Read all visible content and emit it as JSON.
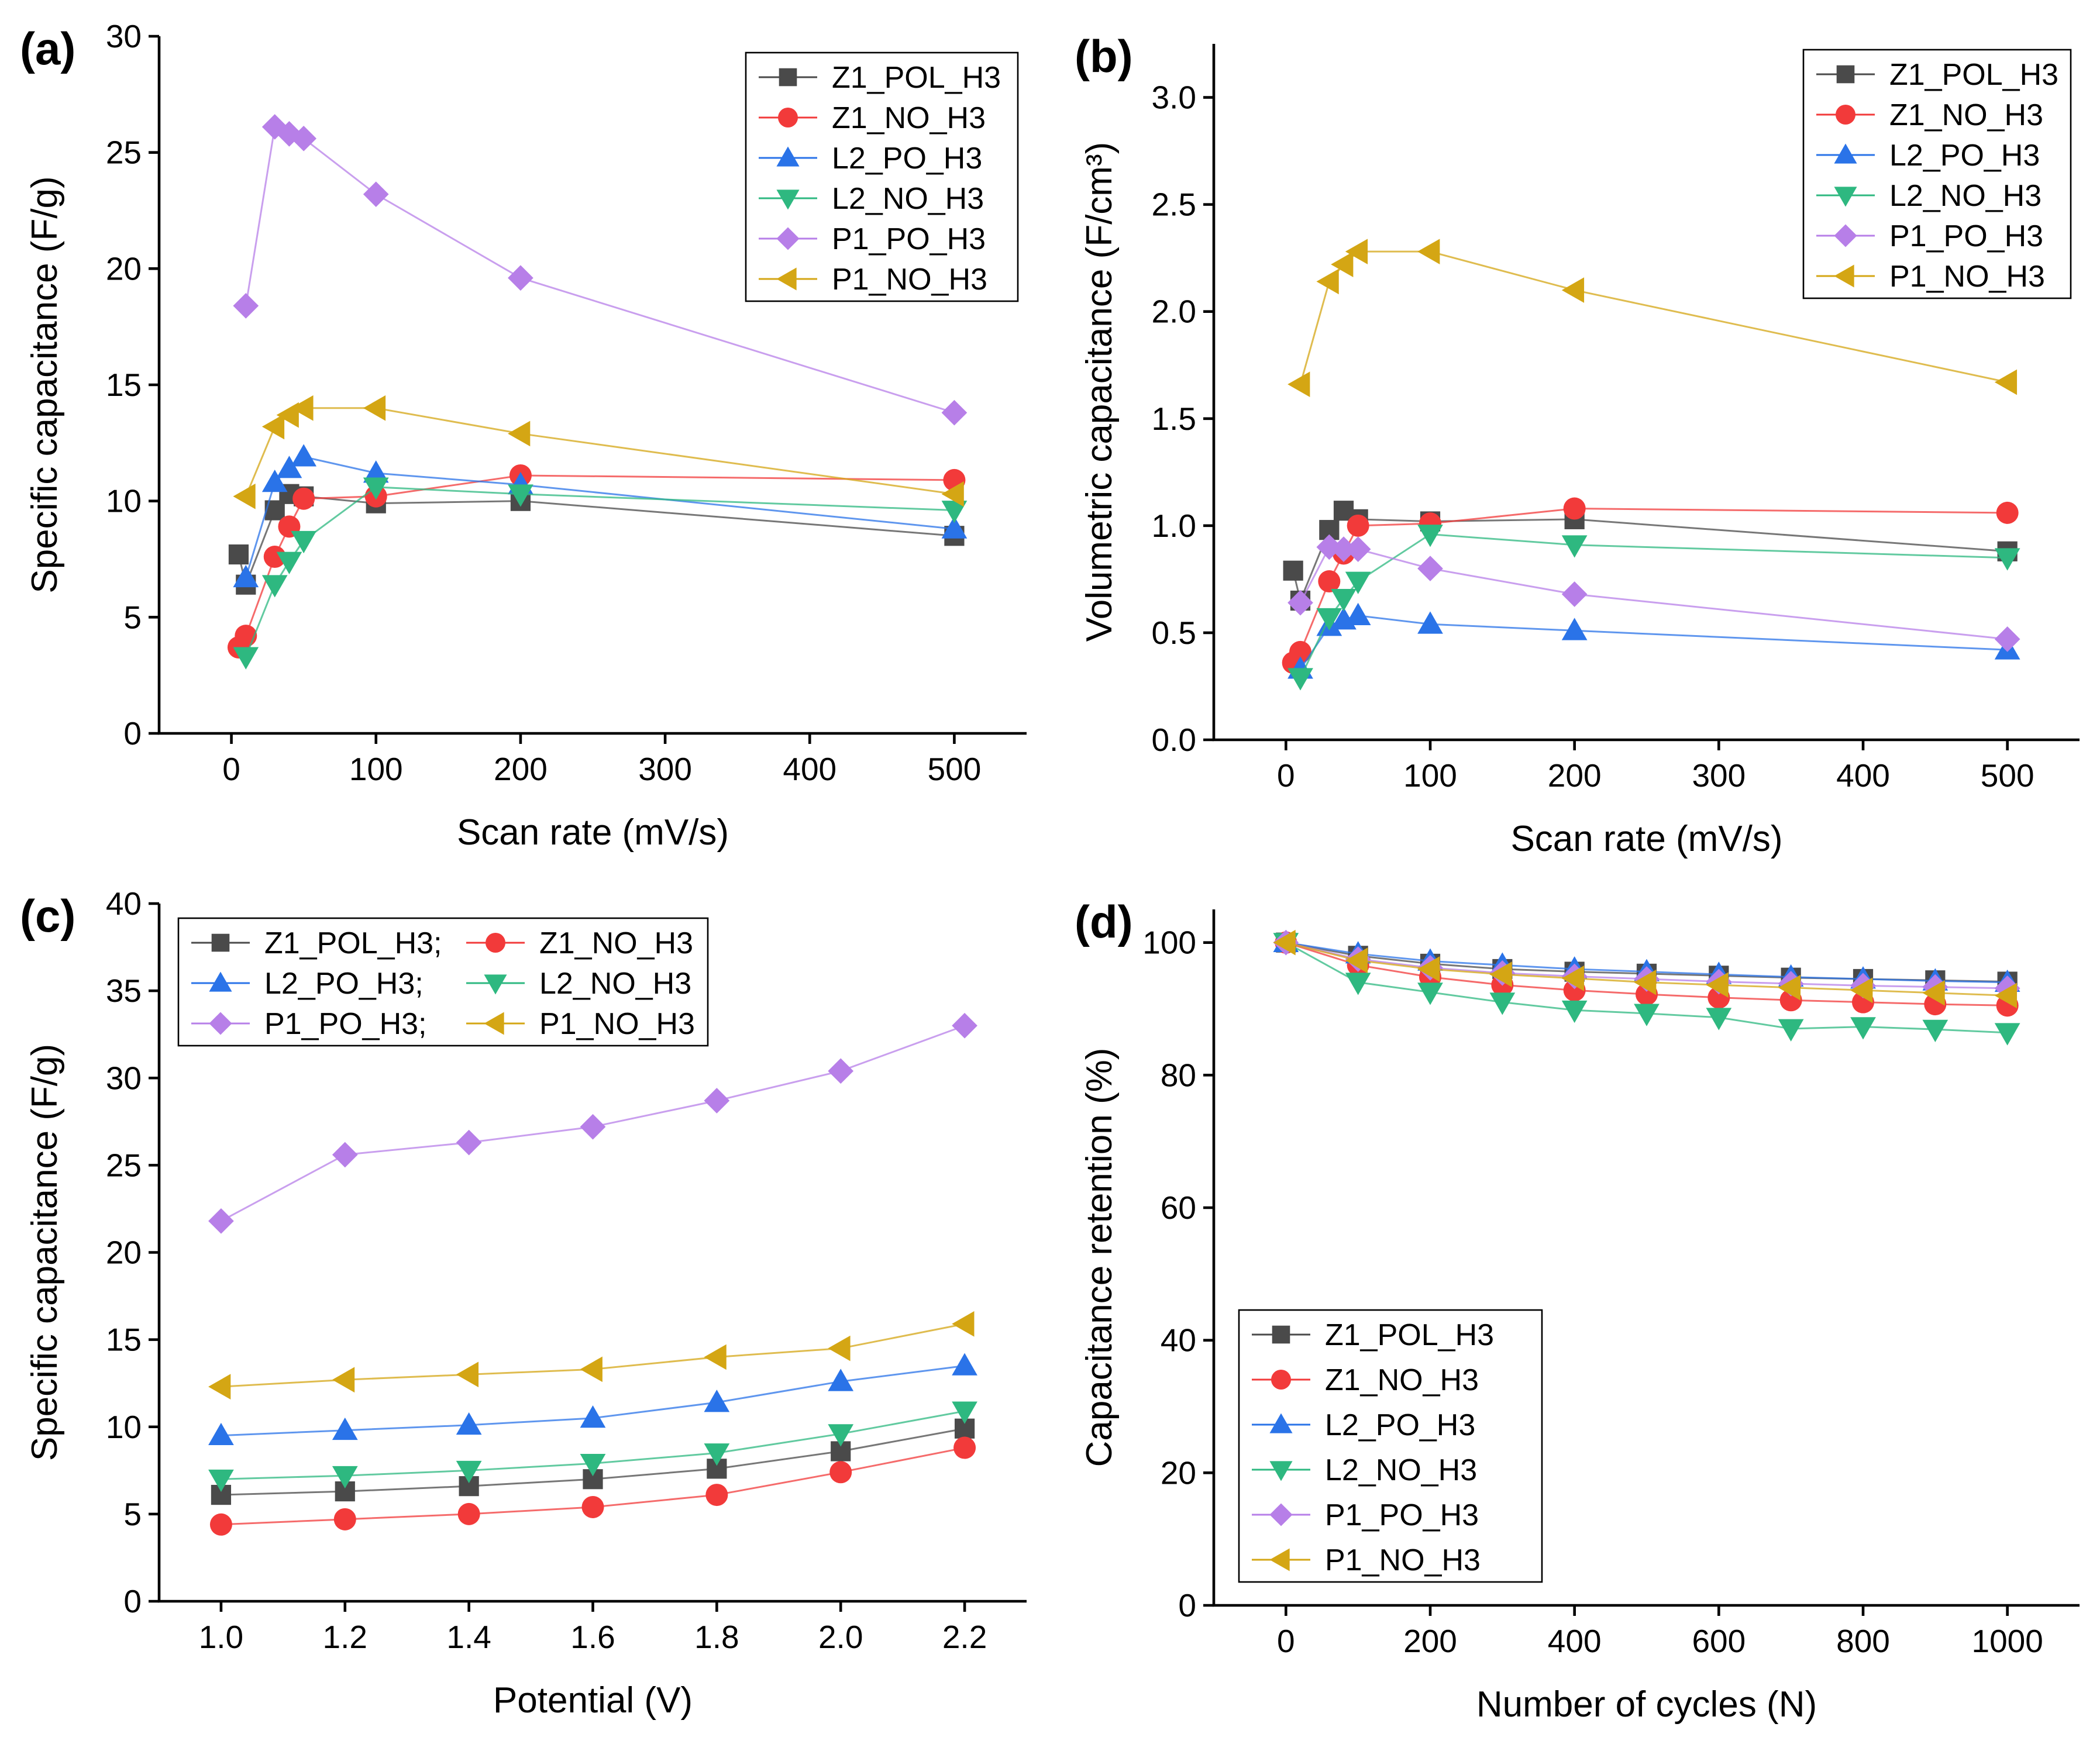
{
  "colors": {
    "Z1_POL_H3": "#4a4a4a",
    "Z1_NO_H3": "#f23a3a",
    "L2_PO_H3": "#2a73e8",
    "L2_NO_H3": "#2eb880",
    "P1_PO_H3": "#b77fe8",
    "P1_NO_H3": "#d4a614"
  },
  "chart_data": [
    {
      "id": "a",
      "panel_label": "(a)",
      "type": "line",
      "xlabel": "Scan rate (mV/s)",
      "ylabel": "Specific capacitance (F/g)",
      "xlim": [
        -50,
        550
      ],
      "ylim": [
        0,
        30
      ],
      "xticks": [
        0,
        100,
        200,
        300,
        400,
        500
      ],
      "yticks": [
        0,
        5,
        10,
        15,
        20,
        25,
        30
      ],
      "legend_position": "top-right",
      "series": [
        {
          "name": "Z1_POL_H3",
          "marker": "square",
          "x": [
            5,
            10,
            30,
            40,
            50,
            100,
            200,
            500
          ],
          "values": [
            7.7,
            6.4,
            9.6,
            10.3,
            10.2,
            9.9,
            10.0,
            8.5
          ]
        },
        {
          "name": "Z1_NO_H3",
          "marker": "circle",
          "x": [
            5,
            10,
            30,
            40,
            50,
            100,
            200,
            500
          ],
          "values": [
            3.7,
            4.2,
            7.6,
            8.9,
            10.1,
            10.2,
            11.1,
            10.9
          ]
        },
        {
          "name": "L2_PO_H3",
          "marker": "triangle-up",
          "x": [
            10,
            30,
            40,
            50,
            100,
            200,
            500
          ],
          "values": [
            6.7,
            10.8,
            11.4,
            11.9,
            11.2,
            10.7,
            8.8
          ]
        },
        {
          "name": "L2_NO_H3",
          "marker": "triangle-down",
          "x": [
            10,
            30,
            40,
            50,
            100,
            200,
            500
          ],
          "values": [
            3.3,
            6.4,
            7.4,
            8.3,
            10.6,
            10.3,
            9.6
          ]
        },
        {
          "name": "P1_PO_H3",
          "marker": "diamond",
          "x": [
            10,
            30,
            40,
            50,
            100,
            200,
            500
          ],
          "values": [
            18.4,
            26.1,
            25.8,
            25.6,
            23.2,
            19.6,
            13.8
          ]
        },
        {
          "name": "P1_NO_H3",
          "marker": "triangle-left",
          "x": [
            10,
            30,
            40,
            50,
            100,
            200,
            500
          ],
          "values": [
            10.2,
            13.2,
            13.7,
            14.0,
            14.0,
            12.9,
            10.3
          ]
        }
      ]
    },
    {
      "id": "b",
      "panel_label": "(b)",
      "type": "line",
      "xlabel": "Scan rate (mV/s)",
      "ylabel": "Volumetric capacitance (F/cm³)",
      "xlim": [
        -50,
        550
      ],
      "ylim": [
        0,
        3.25
      ],
      "xticks": [
        0,
        100,
        200,
        300,
        400,
        500
      ],
      "yticks": [
        0.0,
        0.5,
        1.0,
        1.5,
        2.0,
        2.5,
        3.0
      ],
      "ytick_decimals": 1,
      "legend_position": "top-right",
      "series": [
        {
          "name": "Z1_POL_H3",
          "marker": "square",
          "x": [
            5,
            10,
            30,
            40,
            50,
            100,
            200,
            500
          ],
          "values": [
            0.79,
            0.65,
            0.98,
            1.07,
            1.03,
            1.02,
            1.03,
            0.88
          ]
        },
        {
          "name": "Z1_NO_H3",
          "marker": "circle",
          "x": [
            5,
            10,
            30,
            40,
            50,
            100,
            200,
            500
          ],
          "values": [
            0.36,
            0.41,
            0.74,
            0.87,
            1.0,
            1.01,
            1.08,
            1.06
          ]
        },
        {
          "name": "L2_PO_H3",
          "marker": "triangle-up",
          "x": [
            10,
            30,
            40,
            50,
            100,
            200,
            500
          ],
          "values": [
            0.33,
            0.53,
            0.56,
            0.58,
            0.54,
            0.51,
            0.42
          ]
        },
        {
          "name": "L2_NO_H3",
          "marker": "triangle-down",
          "x": [
            10,
            30,
            40,
            50,
            100,
            200,
            500
          ],
          "values": [
            0.29,
            0.57,
            0.66,
            0.74,
            0.96,
            0.91,
            0.85
          ]
        },
        {
          "name": "P1_PO_H3",
          "marker": "diamond",
          "x": [
            10,
            30,
            40,
            50,
            100,
            200,
            500
          ],
          "values": [
            0.64,
            0.9,
            0.89,
            0.89,
            0.8,
            0.68,
            0.47
          ]
        },
        {
          "name": "P1_NO_H3",
          "marker": "triangle-left",
          "x": [
            10,
            30,
            40,
            50,
            100,
            200,
            500
          ],
          "values": [
            1.66,
            2.14,
            2.22,
            2.28,
            2.28,
            2.1,
            1.67
          ]
        }
      ]
    },
    {
      "id": "c",
      "panel_label": "(c)",
      "type": "line",
      "xlabel": "Potential (V)",
      "ylabel": "Specific capacitance (F/g)",
      "xlim": [
        0.9,
        2.3
      ],
      "ylim": [
        0,
        40
      ],
      "xticks": [
        1.0,
        1.2,
        1.4,
        1.6,
        1.8,
        2.0,
        2.2
      ],
      "xtick_decimals": 1,
      "yticks": [
        0,
        5,
        10,
        15,
        20,
        25,
        30,
        35,
        40
      ],
      "legend_position": "top-left",
      "legend_columns": 2,
      "legend_labels": [
        "Z1_POL_H3;",
        "Z1_NO_H3",
        "L2_PO_H3;",
        "L2_NO_H3",
        "P1_PO_H3;",
        "P1_NO_H3"
      ],
      "series": [
        {
          "name": "Z1_POL_H3",
          "marker": "square",
          "x": [
            1.0,
            1.2,
            1.4,
            1.6,
            1.8,
            2.0,
            2.2
          ],
          "values": [
            6.1,
            6.3,
            6.6,
            7.0,
            7.6,
            8.6,
            9.9
          ]
        },
        {
          "name": "Z1_NO_H3",
          "marker": "circle",
          "x": [
            1.0,
            1.2,
            1.4,
            1.6,
            1.8,
            2.0,
            2.2
          ],
          "values": [
            4.4,
            4.7,
            5.0,
            5.4,
            6.1,
            7.4,
            8.8
          ]
        },
        {
          "name": "L2_PO_H3",
          "marker": "triangle-up",
          "x": [
            1.0,
            1.2,
            1.4,
            1.6,
            1.8,
            2.0,
            2.2
          ],
          "values": [
            9.5,
            9.8,
            10.1,
            10.5,
            11.4,
            12.6,
            13.5
          ]
        },
        {
          "name": "L2_NO_H3",
          "marker": "triangle-down",
          "x": [
            1.0,
            1.2,
            1.4,
            1.6,
            1.8,
            2.0,
            2.2
          ],
          "values": [
            7.0,
            7.2,
            7.5,
            7.9,
            8.5,
            9.6,
            10.9
          ]
        },
        {
          "name": "P1_PO_H3",
          "marker": "diamond",
          "x": [
            1.0,
            1.2,
            1.4,
            1.6,
            1.8,
            2.0,
            2.2
          ],
          "values": [
            21.8,
            25.6,
            26.3,
            27.2,
            28.7,
            30.4,
            33.0
          ]
        },
        {
          "name": "P1_NO_H3",
          "marker": "triangle-left",
          "x": [
            1.0,
            1.2,
            1.4,
            1.6,
            1.8,
            2.0,
            2.2
          ],
          "values": [
            12.3,
            12.7,
            13.0,
            13.3,
            14.0,
            14.5,
            15.9
          ]
        }
      ]
    },
    {
      "id": "d",
      "panel_label": "(d)",
      "type": "line",
      "xlabel": "Number of cycles (N)",
      "ylabel": "Capacitance retention (%)",
      "xlim": [
        -100,
        1100
      ],
      "ylim": [
        0,
        105
      ],
      "xticks": [
        0,
        200,
        400,
        600,
        800,
        1000
      ],
      "yticks": [
        0,
        20,
        40,
        60,
        80,
        100
      ],
      "legend_position": "bottom-left",
      "series": [
        {
          "name": "Z1_POL_H3",
          "marker": "square",
          "x": [
            0,
            100,
            200,
            300,
            400,
            500,
            600,
            700,
            800,
            900,
            1000
          ],
          "values": [
            100,
            98.0,
            96.8,
            96.0,
            95.6,
            95.3,
            95.0,
            94.7,
            94.5,
            94.3,
            94.1
          ]
        },
        {
          "name": "Z1_NO_H3",
          "marker": "circle",
          "x": [
            0,
            100,
            200,
            300,
            400,
            500,
            600,
            700,
            800,
            900,
            1000
          ],
          "values": [
            100,
            96.6,
            94.8,
            93.6,
            92.8,
            92.2,
            91.7,
            91.3,
            91.0,
            90.7,
            90.5
          ]
        },
        {
          "name": "L2_PO_H3",
          "marker": "triangle-up",
          "x": [
            0,
            100,
            200,
            300,
            400,
            500,
            600,
            700,
            800,
            900,
            1000
          ],
          "values": [
            100,
            98.3,
            97.2,
            96.6,
            96.0,
            95.6,
            95.2,
            94.8,
            94.5,
            94.2,
            94.0
          ]
        },
        {
          "name": "L2_NO_H3",
          "marker": "triangle-down",
          "x": [
            0,
            100,
            200,
            300,
            400,
            500,
            600,
            700,
            800,
            900,
            1000
          ],
          "values": [
            100,
            94.0,
            92.5,
            91.0,
            89.8,
            89.3,
            88.7,
            87.0,
            87.3,
            86.9,
            86.4
          ]
        },
        {
          "name": "P1_PO_H3",
          "marker": "diamond",
          "x": [
            0,
            100,
            200,
            300,
            400,
            500,
            600,
            700,
            800,
            900,
            1000
          ],
          "values": [
            100,
            97.5,
            96.2,
            95.4,
            94.9,
            94.5,
            94.1,
            93.8,
            93.5,
            93.3,
            93.1
          ]
        },
        {
          "name": "P1_NO_H3",
          "marker": "triangle-left",
          "x": [
            0,
            100,
            200,
            300,
            400,
            500,
            600,
            700,
            800,
            900,
            1000
          ],
          "values": [
            100,
            97.3,
            96.0,
            95.2,
            94.6,
            94.0,
            93.6,
            93.2,
            92.8,
            92.4,
            92.0
          ]
        }
      ]
    }
  ]
}
